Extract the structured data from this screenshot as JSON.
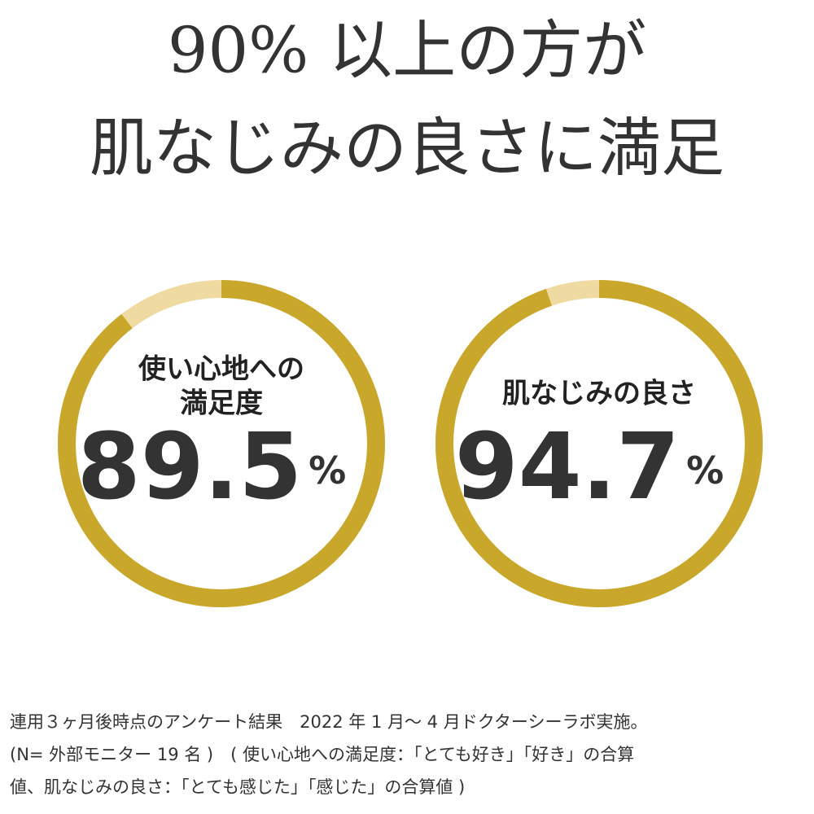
{
  "title": [
    "90% 以上の方が",
    "肌なじみの良さに満足"
  ],
  "gauges": [
    {
      "label": [
        "使い心地への",
        "満足度"
      ],
      "value": 89.5,
      "unit": "%"
    },
    {
      "label": [
        "肌なじみの良さ"
      ],
      "value": 94.7,
      "unit": "%"
    }
  ],
  "max": 100,
  "colors": {
    "filled": "#c8a72a",
    "rest": "#efdaa2"
  },
  "footnote": [
    "連用３ヶ月後時点のアンケート結果　2022 年 1 月～ 4 月ドクターシーラボ実施。",
    "(N= 外部モニター 19 名 )　( 使い心地への満足度：「とても好き」「好き」の合算",
    "値、肌なじみの良さ：「とても感じた」「感じた」の合算値 )"
  ]
}
